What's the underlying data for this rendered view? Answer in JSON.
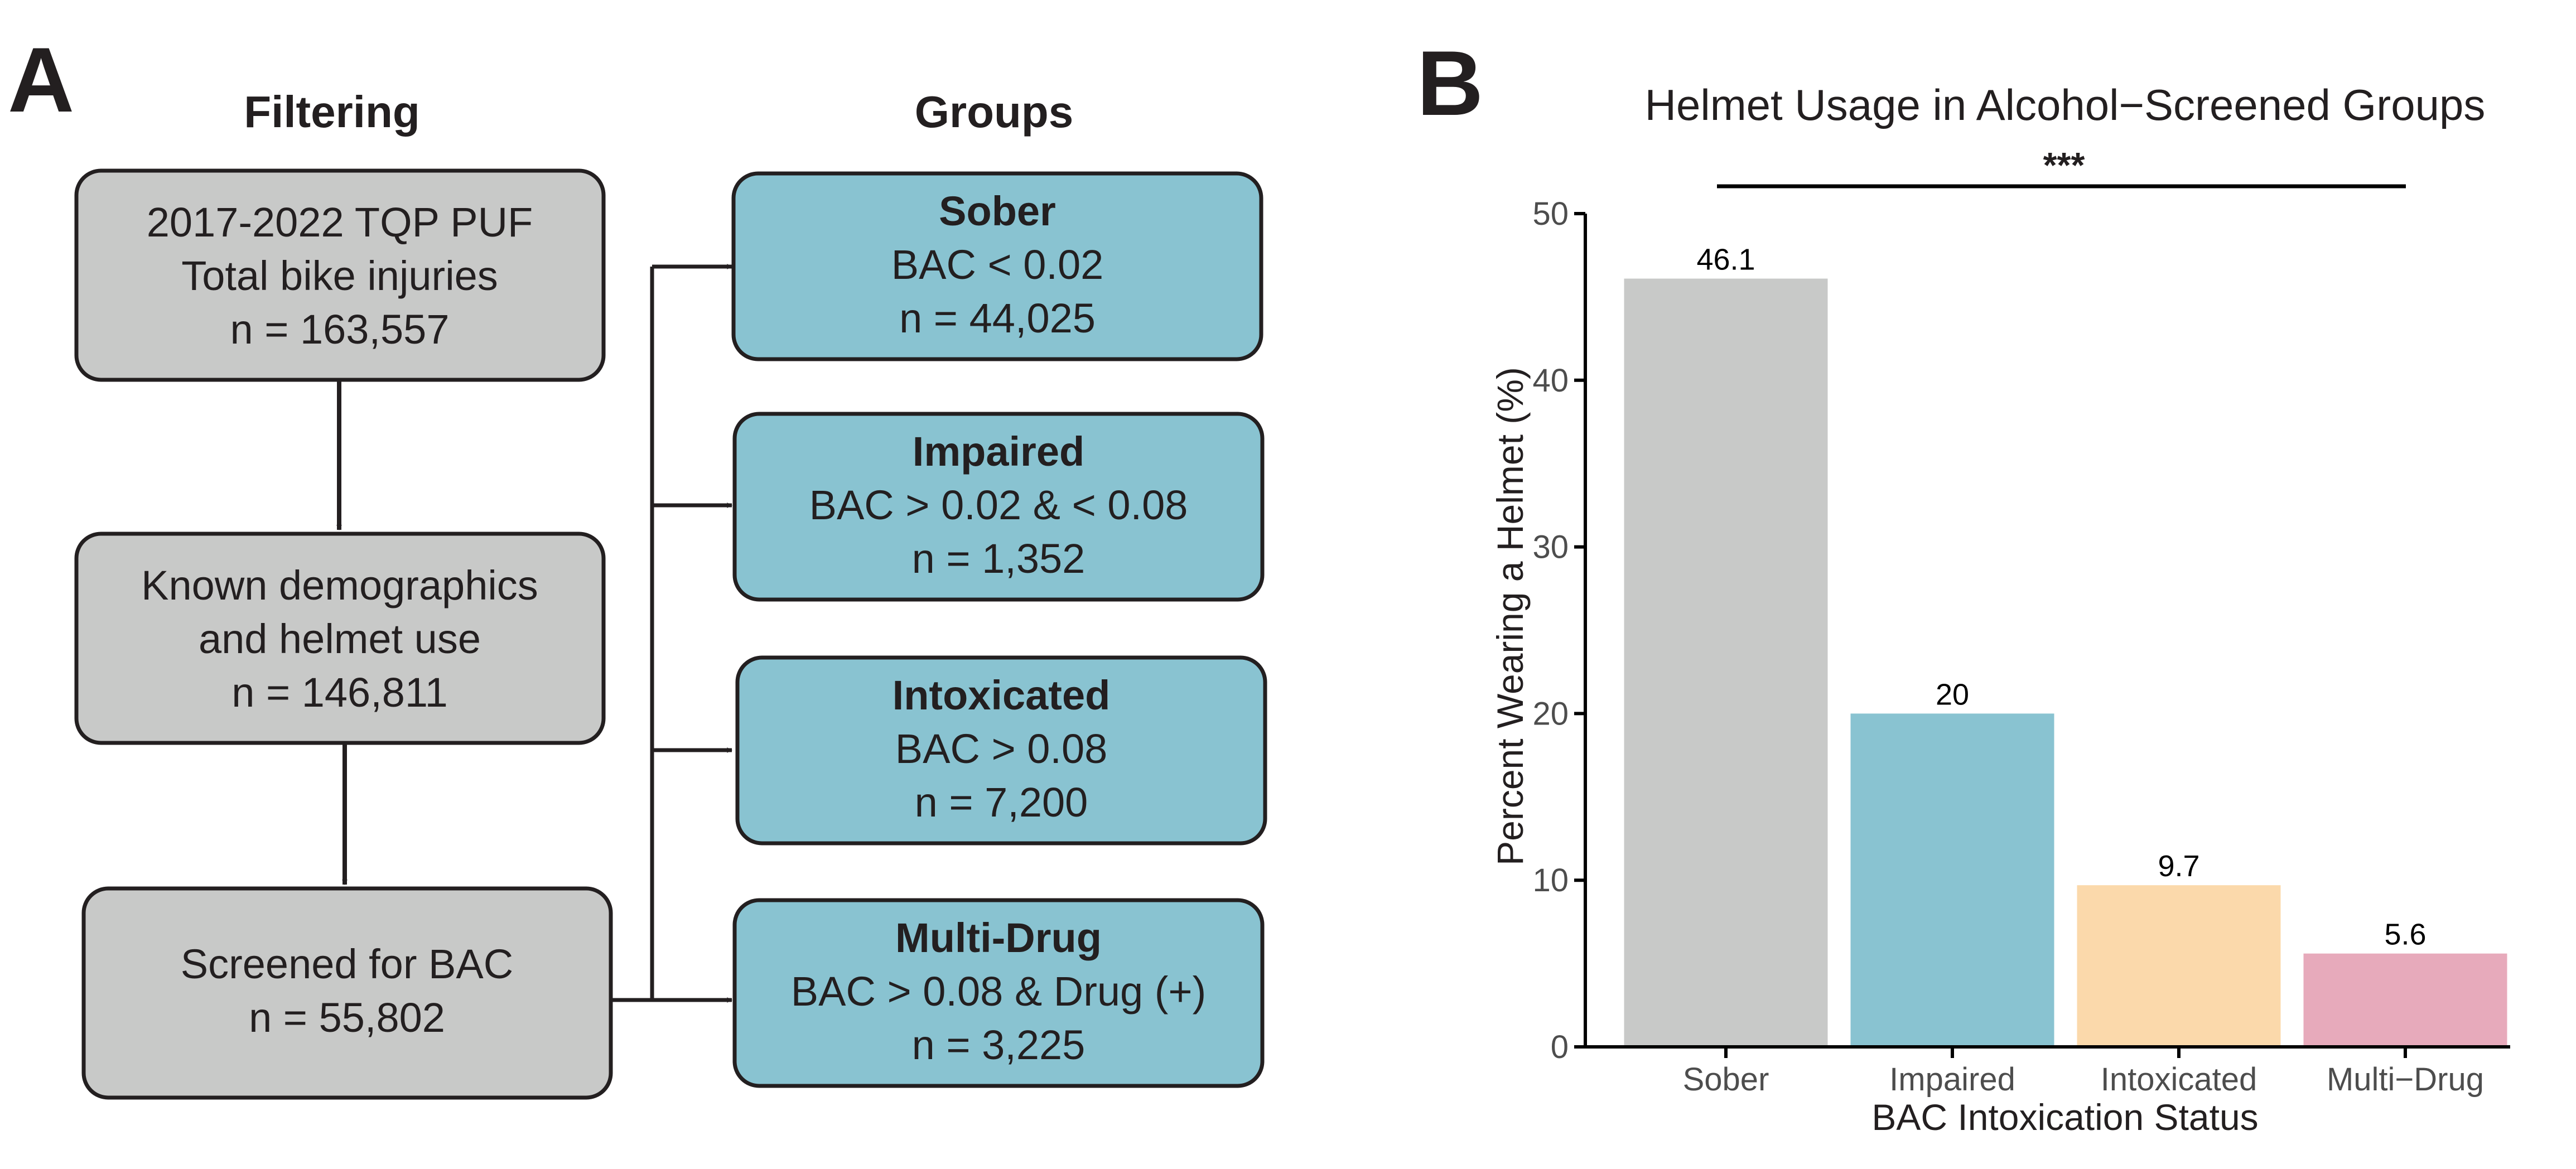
{
  "panel_a": {
    "label": "A",
    "filtering_header": "Filtering",
    "groups_header": "Groups",
    "filter_boxes": [
      {
        "lines": [
          "2017-2022 TQP PUF",
          "Total bike injuries",
          "n = 163,557"
        ]
      },
      {
        "lines": [
          "Known demographics",
          "and helmet use",
          "n = 146,811"
        ]
      },
      {
        "lines": [
          "Screened for BAC",
          "n = 55,802"
        ]
      }
    ],
    "group_boxes": [
      {
        "title": "Sober",
        "criteria": "BAC < 0.02",
        "n": "n = 44,025"
      },
      {
        "title": "Impaired",
        "criteria": "BAC > 0.02 & < 0.08",
        "n": "n = 1,352"
      },
      {
        "title": "Intoxicated",
        "criteria": "BAC > 0.08",
        "n": "n = 7,200"
      },
      {
        "title": "Multi-Drug",
        "criteria": "BAC > 0.08 & Drug (+)",
        "n": "n = 3,225"
      }
    ],
    "colors": {
      "filter_fill": "#c8c9c8",
      "group_fill": "#89c3d1",
      "stroke": "#231f20"
    }
  },
  "panel_b": {
    "label": "B",
    "significance": "***"
  },
  "chart_data": {
    "type": "bar",
    "title": "Helmet Usage in Alcohol−Screened Groups",
    "xlabel": "BAC Intoxication Status",
    "ylabel": "Percent Wearing a Helmet (%)",
    "categories": [
      "Sober",
      "Impaired",
      "Intoxicated",
      "Multi−Drug"
    ],
    "values": [
      46.1,
      20,
      9.7,
      5.6
    ],
    "value_labels": [
      "46.1",
      "20",
      "9.7",
      "5.6"
    ],
    "colors": [
      "#c8c9c8",
      "#89c3d1",
      "#fbd9ab",
      "#e7aabb"
    ],
    "ylim": [
      0,
      50
    ],
    "yticks": [
      "0",
      "10",
      "20",
      "30",
      "40",
      "50"
    ],
    "grid": false,
    "legend": "none"
  }
}
